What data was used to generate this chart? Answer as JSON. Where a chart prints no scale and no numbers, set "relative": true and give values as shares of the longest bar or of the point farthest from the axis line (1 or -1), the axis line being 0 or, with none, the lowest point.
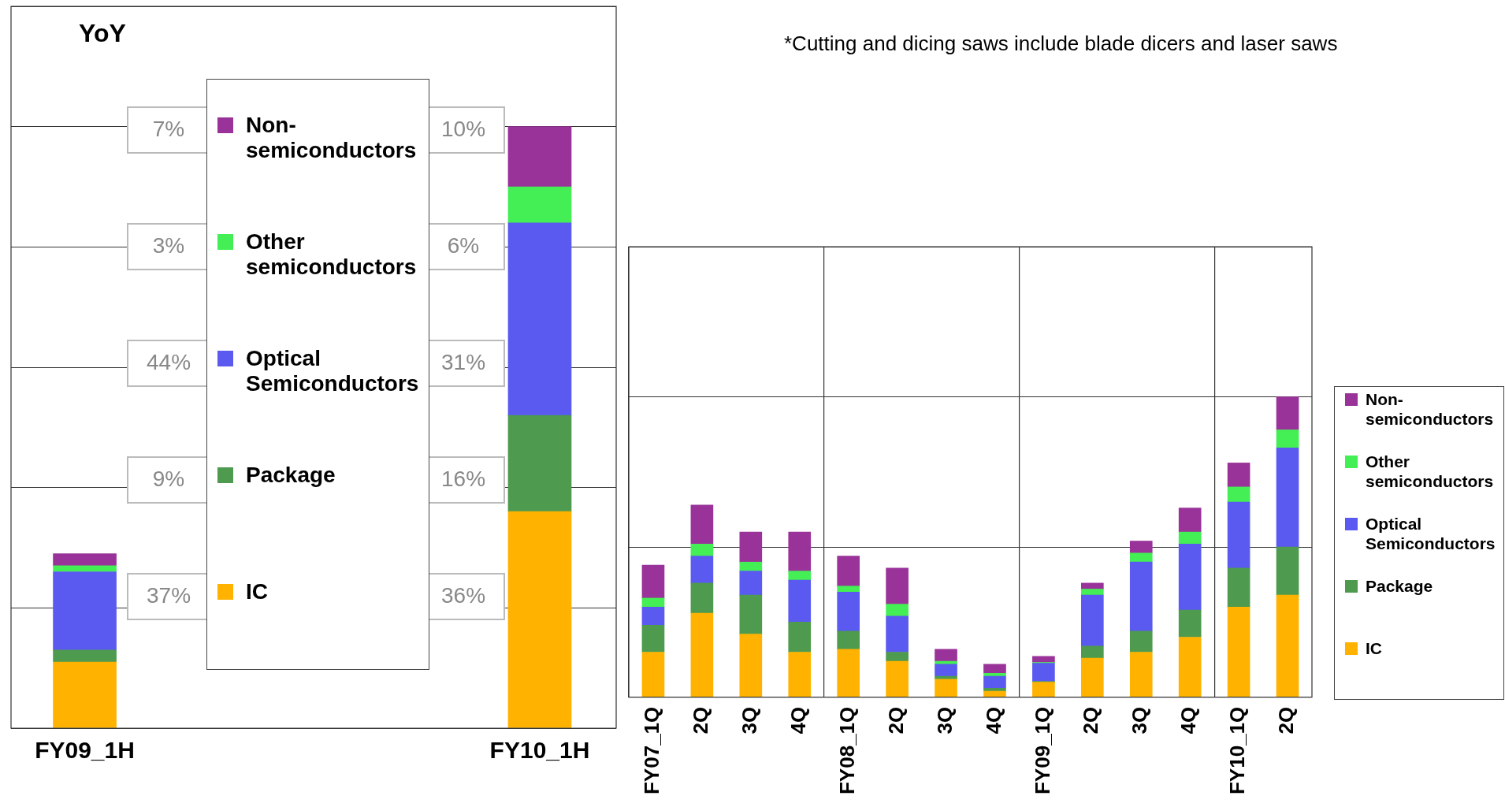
{
  "chart_data": [
    {
      "type": "bar",
      "title": "YoY",
      "categories": [
        "FY09_1H",
        "FY10_1H"
      ],
      "stacked": true,
      "relative": true,
      "grid": "y",
      "legend": "center",
      "annotations": [
        "7%",
        "10%",
        "3%",
        "6%",
        "44%",
        "31%",
        "9%",
        "16%",
        "37%",
        "36%"
      ],
      "series": [
        {
          "name": "IC",
          "color": "#ffb300",
          "values": [
            0.11,
            0.36
          ]
        },
        {
          "name": "Package",
          "color": "#4e9a4e",
          "values": [
            0.02,
            0.16
          ]
        },
        {
          "name": "Optical Semiconductors",
          "color": "#5a5af0",
          "values": [
            0.13,
            0.32
          ]
        },
        {
          "name": "Other semiconductors",
          "color": "#44ee55",
          "values": [
            0.01,
            0.06
          ]
        },
        {
          "name": "Non-semiconductors",
          "color": "#993399",
          "values": [
            0.02,
            0.1
          ]
        }
      ]
    },
    {
      "type": "bar",
      "categories": [
        "FY07_1Q",
        "2Q",
        "3Q",
        "4Q",
        "FY08_1Q",
        "2Q",
        "3Q",
        "4Q",
        "FY09_1Q",
        "2Q",
        "3Q",
        "4Q",
        "FY10_1Q",
        "2Q"
      ],
      "stacked": true,
      "relative": true,
      "grid": true,
      "legend": "right",
      "annotations": [
        "*Cutting and dicing saws include blade dicers and laser saws"
      ],
      "series": [
        {
          "name": "IC",
          "color": "#ffb300",
          "values": [
            0.15,
            0.28,
            0.21,
            0.15,
            0.16,
            0.12,
            0.06,
            0.02,
            0.05,
            0.13,
            0.15,
            0.2,
            0.3,
            0.34
          ]
        },
        {
          "name": "Package",
          "color": "#4e9a4e",
          "values": [
            0.09,
            0.1,
            0.13,
            0.1,
            0.06,
            0.03,
            0.01,
            0.01,
            0.003,
            0.04,
            0.07,
            0.09,
            0.13,
            0.16
          ]
        },
        {
          "name": "Optical Semiconductors",
          "color": "#5a5af0",
          "values": [
            0.06,
            0.09,
            0.08,
            0.14,
            0.13,
            0.12,
            0.04,
            0.04,
            0.06,
            0.17,
            0.23,
            0.22,
            0.22,
            0.33
          ]
        },
        {
          "name": "Other semiconductors",
          "color": "#44ee55",
          "values": [
            0.03,
            0.04,
            0.03,
            0.03,
            0.02,
            0.04,
            0.01,
            0.01,
            0.003,
            0.02,
            0.03,
            0.04,
            0.05,
            0.06
          ]
        },
        {
          "name": "Non-semiconductors",
          "color": "#993399",
          "values": [
            0.11,
            0.13,
            0.1,
            0.13,
            0.1,
            0.12,
            0.04,
            0.03,
            0.02,
            0.02,
            0.04,
            0.08,
            0.08,
            0.11
          ]
        }
      ]
    }
  ]
}
